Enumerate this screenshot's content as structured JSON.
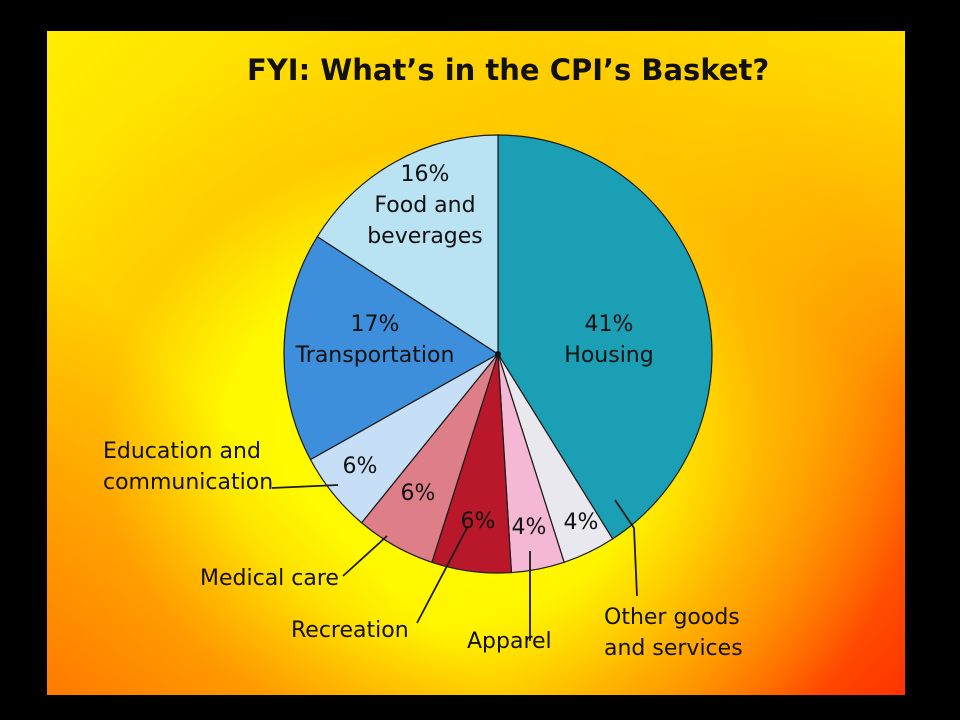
{
  "chart_data": {
    "type": "pie",
    "title": "FYI: What’s in the CPI’s Basket?",
    "slices": [
      {
        "label": "Housing",
        "value": 41,
        "value_label": "41%",
        "color": "#1b9fb5"
      },
      {
        "label": "Other goods\nand services",
        "value": 4,
        "value_label": "4%",
        "color": "#e8e8ee"
      },
      {
        "label": "Apparel",
        "value": 4,
        "value_label": "4%",
        "color": "#f4b8d4"
      },
      {
        "label": "Recreation",
        "value": 6,
        "value_label": "6%",
        "color": "#b8182a"
      },
      {
        "label": "Medical care",
        "value": 6,
        "value_label": "6%",
        "color": "#de7e88"
      },
      {
        "label": "Education and\ncommunication",
        "value": 6,
        "value_label": "6%",
        "color": "#c6dff7"
      },
      {
        "label": "Transportation",
        "value": 17,
        "value_label": "17%",
        "color": "#3d8edb"
      },
      {
        "label": "Food and\nbeverages",
        "value": 16,
        "value_label": "16%",
        "color": "#b9e3f2"
      }
    ]
  }
}
